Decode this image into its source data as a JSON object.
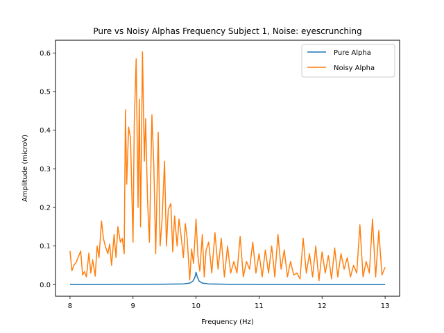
{
  "chart_data": {
    "type": "line",
    "title": "Pure vs Noisy Alphas Frequency Subject 1, Noise: eyescrunching",
    "xlabel": "Frequency (Hz)",
    "ylabel": "Amplitude (microV)",
    "xlim": [
      7.77,
      13.23
    ],
    "ylim": [
      -0.03,
      0.633
    ],
    "xticks": [
      8,
      9,
      10,
      11,
      12,
      13
    ],
    "yticks": [
      0.0,
      0.1,
      0.2,
      0.3,
      0.4,
      0.5,
      0.6
    ],
    "xtick_labels": [
      "8",
      "9",
      "10",
      "11",
      "12",
      "13"
    ],
    "ytick_labels": [
      "0.0",
      "0.1",
      "0.2",
      "0.3",
      "0.4",
      "0.5",
      "0.6"
    ],
    "grid": false,
    "legend_position": "top-right",
    "series": [
      {
        "name": "Pure Alpha",
        "color": "#1f77b4",
        "x": [
          8.0,
          8.5,
          9.0,
          9.5,
          9.8,
          9.9,
          9.95,
          9.98,
          10.0,
          10.02,
          10.05,
          10.1,
          10.2,
          10.5,
          11.0,
          12.0,
          13.0
        ],
        "y": [
          0.0,
          0.0005,
          0.0008,
          0.0012,
          0.002,
          0.004,
          0.009,
          0.018,
          0.032,
          0.02,
          0.009,
          0.004,
          0.002,
          0.001,
          0.0005,
          0.0002,
          0.0
        ]
      },
      {
        "name": "Noisy Alpha",
        "color": "#ff7f0e",
        "x": [
          8.0,
          8.03,
          8.06,
          8.1,
          8.14,
          8.17,
          8.2,
          8.23,
          8.26,
          8.3,
          8.33,
          8.36,
          8.4,
          8.43,
          8.46,
          8.5,
          8.53,
          8.56,
          8.6,
          8.63,
          8.66,
          8.7,
          8.73,
          8.76,
          8.8,
          8.83,
          8.86,
          8.88,
          8.9,
          8.93,
          8.96,
          9.0,
          9.02,
          9.05,
          9.08,
          9.1,
          9.12,
          9.15,
          9.18,
          9.2,
          9.23,
          9.26,
          9.3,
          9.33,
          9.36,
          9.4,
          9.43,
          9.46,
          9.5,
          9.53,
          9.56,
          9.6,
          9.63,
          9.66,
          9.7,
          9.73,
          9.76,
          9.8,
          9.83,
          9.86,
          9.9,
          9.93,
          9.96,
          10.0,
          10.03,
          10.06,
          10.1,
          10.13,
          10.16,
          10.2,
          10.25,
          10.3,
          10.35,
          10.4,
          10.45,
          10.5,
          10.55,
          10.6,
          10.65,
          10.7,
          10.75,
          10.8,
          10.85,
          10.9,
          10.95,
          11.0,
          11.05,
          11.1,
          11.15,
          11.2,
          11.25,
          11.3,
          11.35,
          11.4,
          11.45,
          11.5,
          11.55,
          11.6,
          11.65,
          11.7,
          11.75,
          11.8,
          11.85,
          11.9,
          11.95,
          12.0,
          12.05,
          12.1,
          12.15,
          12.2,
          12.25,
          12.3,
          12.35,
          12.4,
          12.45,
          12.5,
          12.55,
          12.6,
          12.65,
          12.7,
          12.75,
          12.8,
          12.85,
          12.9,
          12.95,
          13.0
        ],
        "y": [
          0.087,
          0.036,
          0.05,
          0.058,
          0.075,
          0.087,
          0.025,
          0.034,
          0.02,
          0.082,
          0.03,
          0.064,
          0.022,
          0.1,
          0.07,
          0.165,
          0.12,
          0.1,
          0.08,
          0.105,
          0.05,
          0.13,
          0.07,
          0.15,
          0.11,
          0.12,
          0.08,
          0.453,
          0.26,
          0.408,
          0.38,
          0.11,
          0.42,
          0.585,
          0.2,
          0.48,
          0.15,
          0.603,
          0.32,
          0.43,
          0.22,
          0.11,
          0.44,
          0.31,
          0.08,
          0.395,
          0.1,
          0.165,
          0.32,
          0.1,
          0.195,
          0.21,
          0.085,
          0.178,
          0.1,
          0.17,
          0.13,
          0.07,
          0.158,
          0.118,
          0.012,
          0.092,
          0.055,
          0.17,
          0.073,
          0.035,
          0.13,
          0.02,
          0.09,
          0.11,
          0.03,
          0.135,
          0.04,
          0.12,
          0.02,
          0.1,
          0.03,
          0.06,
          0.03,
          0.125,
          0.02,
          0.06,
          0.04,
          0.11,
          0.03,
          0.08,
          0.02,
          0.09,
          0.03,
          0.1,
          0.02,
          0.13,
          0.04,
          0.09,
          0.02,
          0.06,
          0.025,
          0.03,
          0.015,
          0.12,
          0.03,
          0.08,
          0.02,
          0.1,
          0.01,
          0.085,
          0.03,
          0.075,
          0.015,
          0.095,
          0.02,
          0.08,
          0.04,
          0.07,
          0.02,
          0.05,
          0.03,
          0.155,
          0.02,
          0.06,
          0.03,
          0.17,
          0.02,
          0.14,
          0.025,
          0.045
        ]
      }
    ]
  },
  "legend": {
    "items": [
      {
        "label": "Pure Alpha",
        "color": "#1f77b4"
      },
      {
        "label": "Noisy Alpha",
        "color": "#ff7f0e"
      }
    ]
  }
}
